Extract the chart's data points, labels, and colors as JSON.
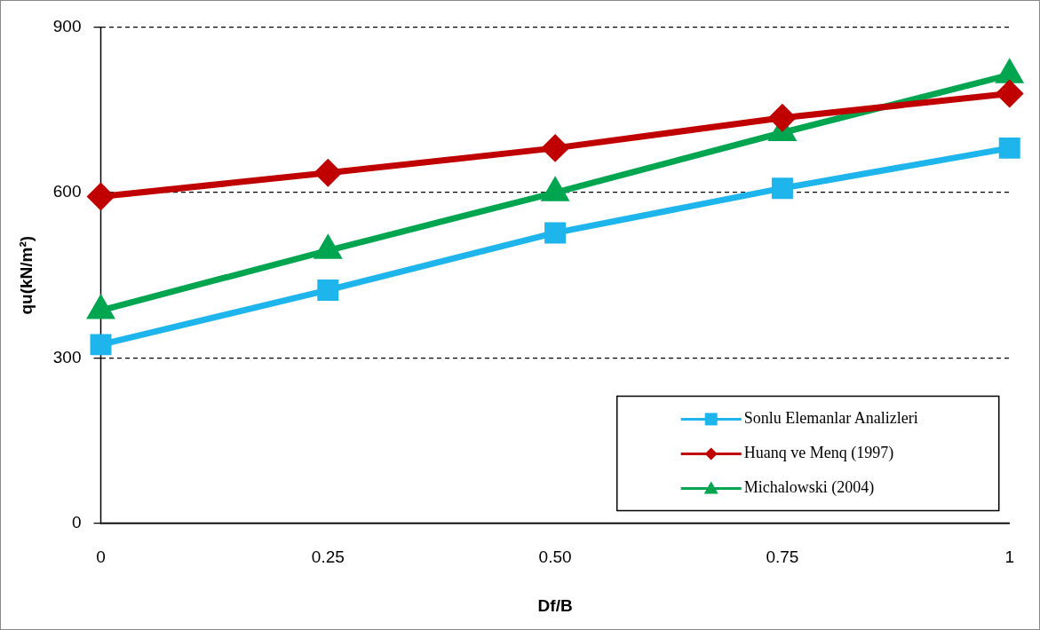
{
  "chart_data": {
    "type": "line",
    "xlabel": "Df/B",
    "ylabel": "qu(kN/m²)",
    "categories": [
      "0",
      "0.25",
      "0.50",
      "0.75",
      "1"
    ],
    "series": [
      {
        "name": "Sonlu Elemanlar Analizleri",
        "color": "#1eb4ec",
        "marker": "square",
        "values": [
          324,
          423,
          527,
          608,
          681
        ]
      },
      {
        "name": "Huanq ve Menq (1997)",
        "color": "#c00000",
        "marker": "diamond",
        "values": [
          593,
          636,
          681,
          736,
          780
        ]
      },
      {
        "name": "Michalowski (2004)",
        "color": "#00a550",
        "marker": "triangle",
        "values": [
          386,
          495,
          600,
          709,
          814
        ]
      }
    ],
    "ylim": [
      0,
      900
    ],
    "yticks": [
      0,
      300,
      600,
      900
    ],
    "grid": "y",
    "legend": "bottom right"
  }
}
